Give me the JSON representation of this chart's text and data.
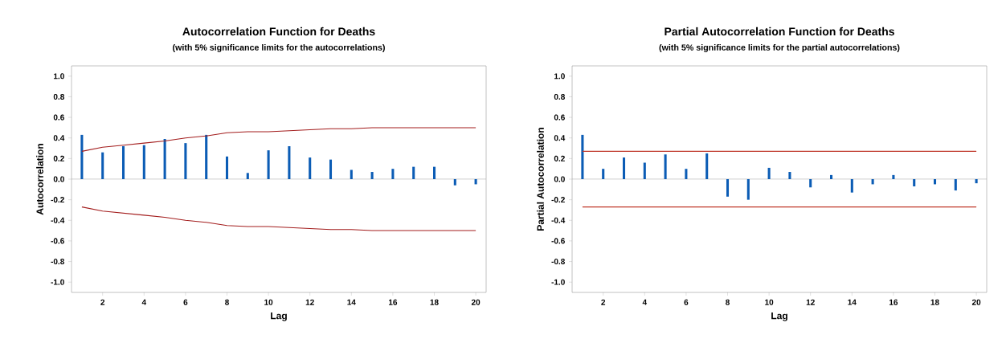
{
  "chart_data": [
    {
      "type": "bar",
      "title": "Autocorrelation Function for Deaths",
      "subtitle": "(with 5% significance limits for the autocorrelations)",
      "xlabel": "Lag",
      "ylabel": "Autocorrelation",
      "x": [
        1,
        2,
        3,
        4,
        5,
        6,
        7,
        8,
        9,
        10,
        11,
        12,
        13,
        14,
        15,
        16,
        17,
        18,
        19,
        20
      ],
      "series": [
        {
          "color": "#0b5cb5",
          "values": [
            0.43,
            0.26,
            0.32,
            0.33,
            0.39,
            0.35,
            0.43,
            0.22,
            0.06,
            0.28,
            0.32,
            0.21,
            0.19,
            0.09,
            0.07,
            0.1,
            0.12,
            0.12,
            -0.06,
            -0.05
          ]
        },
        {
          "type": "line",
          "color": "#a31d1d",
          "values": [
            0.27,
            0.31,
            0.33,
            0.35,
            0.37,
            0.4,
            0.42,
            0.45,
            0.46,
            0.46,
            0.47,
            0.48,
            0.49,
            0.49,
            0.5,
            0.5,
            0.5,
            0.5,
            0.5,
            0.5
          ]
        },
        {
          "type": "line",
          "color": "#a31d1d",
          "values": [
            -0.27,
            -0.31,
            -0.33,
            -0.35,
            -0.37,
            -0.4,
            -0.42,
            -0.45,
            -0.46,
            -0.46,
            -0.47,
            -0.48,
            -0.49,
            -0.49,
            -0.5,
            -0.5,
            -0.5,
            -0.5,
            -0.5,
            -0.5
          ]
        }
      ],
      "ref_lines": [
        {
          "axis": "y",
          "value": 0,
          "color": "#a0a0a0"
        }
      ],
      "xlim": [
        0.5,
        20.5
      ],
      "ylim": [
        -1.1,
        1.1
      ],
      "xticks": [
        2,
        4,
        6,
        8,
        10,
        12,
        14,
        16,
        18,
        20
      ],
      "yticks": [
        {
          "value": -1.0,
          "label": "-1.0"
        },
        -0.8,
        -0.6,
        -0.4,
        -0.2,
        {
          "value": 0,
          "label": "0.0"
        },
        0.2,
        0.4,
        0.6,
        0.8,
        {
          "value": 1.0,
          "label": "1.0"
        }
      ],
      "grid": false
    },
    {
      "type": "bar",
      "title": "Partial Autocorrelation Function for Deaths",
      "subtitle": "(with 5% significance limits for the partial autocorrelations)",
      "xlabel": "Lag",
      "ylabel": "Partial Autocorrelation",
      "x": [
        1,
        2,
        3,
        4,
        5,
        6,
        7,
        8,
        9,
        10,
        11,
        12,
        13,
        14,
        15,
        16,
        17,
        18,
        19,
        20
      ],
      "series": [
        {
          "color": "#0b5cb5",
          "values": [
            0.43,
            0.1,
            0.21,
            0.16,
            0.24,
            0.1,
            0.25,
            -0.17,
            -0.2,
            0.11,
            0.07,
            -0.08,
            0.04,
            -0.13,
            -0.05,
            0.04,
            -0.07,
            -0.05,
            -0.11,
            -0.04
          ]
        },
        {
          "type": "line",
          "color": "#c0392b",
          "values": [
            0.27,
            0.27,
            0.27,
            0.27,
            0.27,
            0.27,
            0.27,
            0.27,
            0.27,
            0.27,
            0.27,
            0.27,
            0.27,
            0.27,
            0.27,
            0.27,
            0.27,
            0.27,
            0.27,
            0.27
          ]
        },
        {
          "type": "line",
          "color": "#c0392b",
          "values": [
            -0.27,
            -0.27,
            -0.27,
            -0.27,
            -0.27,
            -0.27,
            -0.27,
            -0.27,
            -0.27,
            -0.27,
            -0.27,
            -0.27,
            -0.27,
            -0.27,
            -0.27,
            -0.27,
            -0.27,
            -0.27,
            -0.27,
            -0.27
          ]
        }
      ],
      "ref_lines": [
        {
          "axis": "y",
          "value": 0,
          "color": "#a0a0a0"
        }
      ],
      "xlim": [
        0.5,
        20.5
      ],
      "ylim": [
        -1.1,
        1.1
      ],
      "xticks": [
        2,
        4,
        6,
        8,
        10,
        12,
        14,
        16,
        18,
        20
      ],
      "yticks": [
        {
          "value": -1.0,
          "label": "-1.0"
        },
        -0.8,
        -0.6,
        -0.4,
        -0.2,
        {
          "value": 0,
          "label": "0.0"
        },
        0.2,
        0.4,
        0.6,
        0.8,
        {
          "value": 1.0,
          "label": "1.0"
        }
      ],
      "grid": false
    }
  ]
}
